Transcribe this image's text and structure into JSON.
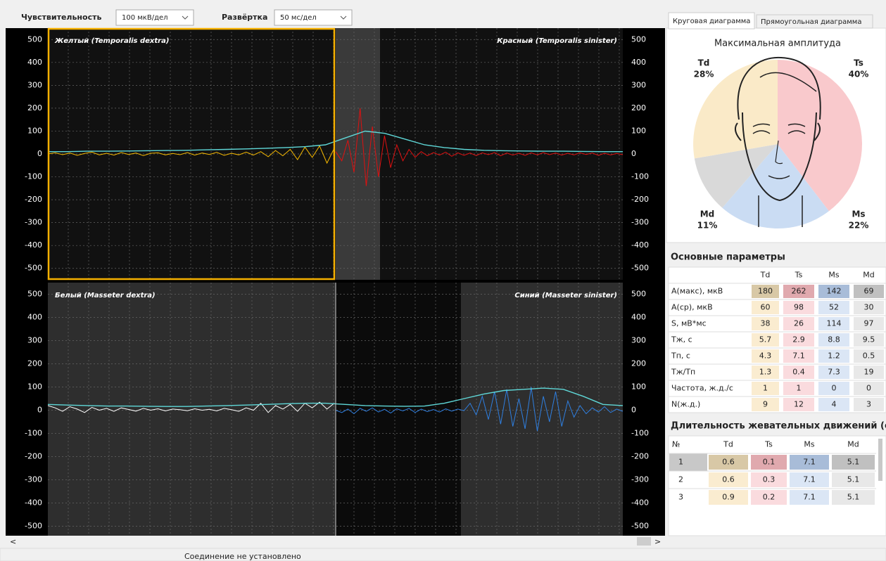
{
  "chart_data": [
    {
      "type": "line",
      "ylim": [
        -550,
        550
      ],
      "yticks": [
        500,
        400,
        300,
        200,
        100,
        0,
        -100,
        -200,
        -300,
        -400,
        -500
      ],
      "grid": true,
      "series": [
        {
          "name": "Желтый (Temporalis dextra)",
          "color": "#f5b800",
          "values": [
            0,
            5,
            -3,
            4,
            -6,
            2,
            8,
            -4,
            3,
            -5,
            6,
            -2,
            4,
            -7,
            3,
            5,
            -4,
            2,
            -3,
            6,
            -5,
            4,
            -2,
            7,
            -6,
            3,
            -4,
            8,
            -5,
            10,
            -12,
            15,
            -8,
            20,
            -25,
            30,
            -15,
            35,
            -40,
            25
          ]
        },
        {
          "name": "Красный (Temporalis sinister)",
          "color": "#e01010",
          "values": [
            10,
            -30,
            60,
            -80,
            200,
            -140,
            120,
            -100,
            80,
            -60,
            40,
            -30,
            20,
            -15,
            10,
            -8,
            6,
            -5,
            8,
            -10,
            5,
            -6,
            4,
            -7,
            5,
            -3,
            6,
            -8,
            4,
            -5,
            3,
            -6,
            5,
            -4,
            6,
            -3,
            4,
            -5,
            3,
            -4,
            5,
            -2,
            4,
            -6,
            3,
            -4,
            2,
            -3
          ]
        },
        {
          "color": "#5fd8d8",
          "values": [
            10,
            10,
            12,
            12,
            13,
            14,
            15,
            16,
            18,
            20,
            22,
            25,
            28,
            32,
            40,
            70,
            100,
            90,
            65,
            40,
            28,
            20,
            16,
            14,
            13,
            12,
            12,
            11,
            10,
            10
          ]
        }
      ]
    },
    {
      "type": "line",
      "ylim": [
        -550,
        550
      ],
      "yticks": [
        500,
        400,
        300,
        200,
        100,
        0,
        -100,
        -200,
        -300,
        -400,
        -500
      ],
      "grid": true,
      "series": [
        {
          "name": "Белый (Masseter dextra)",
          "color": "#ffffff",
          "values": [
            20,
            10,
            -5,
            15,
            5,
            -10,
            12,
            0,
            8,
            -5,
            10,
            3,
            -4,
            8,
            0,
            6,
            -3,
            5,
            2,
            -2,
            6,
            0,
            4,
            -3,
            8,
            2,
            -5,
            10,
            0,
            30,
            -10,
            20,
            5,
            25,
            -5,
            30,
            10,
            35,
            5,
            30
          ]
        },
        {
          "name": "Синий (Masseter sinister)",
          "color": "#2f7fe0",
          "values": [
            0,
            -10,
            5,
            -15,
            8,
            -5,
            10,
            -8,
            4,
            -12,
            6,
            -3,
            8,
            -10,
            5,
            -6,
            3,
            -8,
            6,
            -4,
            5,
            -2,
            30,
            -20,
            60,
            -40,
            80,
            -60,
            90,
            -70,
            50,
            -80,
            100,
            -90,
            60,
            -50,
            80,
            -70,
            40,
            -30,
            20,
            -15,
            10,
            -8,
            15,
            -10,
            5,
            -5
          ]
        },
        {
          "color": "#5fd8d8",
          "values": [
            25,
            22,
            20,
            18,
            18,
            17,
            16,
            16,
            18,
            20,
            22,
            25,
            28,
            30,
            30,
            25,
            20,
            18,
            17,
            18,
            30,
            50,
            70,
            85,
            90,
            95,
            90,
            60,
            25,
            20
          ]
        }
      ]
    },
    {
      "type": "pie",
      "title": "Максимальная амплитуда",
      "categories": [
        "Td",
        "Ts",
        "Ms",
        "Md"
      ],
      "values": [
        28,
        40,
        22,
        11
      ],
      "value_labels": [
        "28%",
        "40%",
        "22%",
        "11%"
      ],
      "colors": [
        "#faeac8",
        "#f9c9cc",
        "#cadcf3",
        "#d9d9d9"
      ]
    }
  ],
  "toolbar": {
    "sensitivity_label": "Чувствительность",
    "sensitivity_value": "100 мкВ/дел",
    "sweep_label": "Развёртка",
    "sweep_value": "50 мс/дел"
  },
  "tabs": [
    "Круговая диаграмма",
    "Прямоугольная диаграмма"
  ],
  "params": {
    "title": "Основные параметры",
    "header": [
      "Td",
      "Ts",
      "Ms",
      "Md"
    ],
    "rows": [
      {
        "label": "А(макс), мкВ",
        "cells": [
          "180",
          "262",
          "142",
          "69"
        ]
      },
      {
        "label": "А(ср), мкВ",
        "cells": [
          "60",
          "98",
          "52",
          "30"
        ]
      },
      {
        "label": "S, мВ*мс",
        "cells": [
          "38",
          "26",
          "114",
          "97"
        ]
      },
      {
        "label": "Тж, с",
        "cells": [
          "5.7",
          "2.9",
          "8.8",
          "9.5"
        ]
      },
      {
        "label": "Тп, с",
        "cells": [
          "4.3",
          "7.1",
          "1.2",
          "0.5"
        ]
      },
      {
        "label": "Тж/Тп",
        "cells": [
          "1.3",
          "0.4",
          "7.3",
          "19"
        ]
      },
      {
        "label": "Частота, ж.д./с",
        "cells": [
          "1",
          "1",
          "0",
          "0"
        ]
      },
      {
        "label": "N(ж.д.)",
        "cells": [
          "9",
          "12",
          "4",
          "3"
        ]
      }
    ]
  },
  "durations": {
    "title": "Длительность жевательных движений (с)",
    "header": [
      "№",
      "Td",
      "Ts",
      "Ms",
      "Md"
    ],
    "rows": [
      [
        "1",
        "0.6",
        "0.1",
        "7.1",
        "5.1"
      ],
      [
        "2",
        "0.6",
        "0.3",
        "7.1",
        "5.1"
      ],
      [
        "3",
        "0.9",
        "0.2",
        "7.1",
        "5.1"
      ]
    ]
  },
  "scroll": [
    "<",
    ">"
  ],
  "status": "Соединение не установлено"
}
